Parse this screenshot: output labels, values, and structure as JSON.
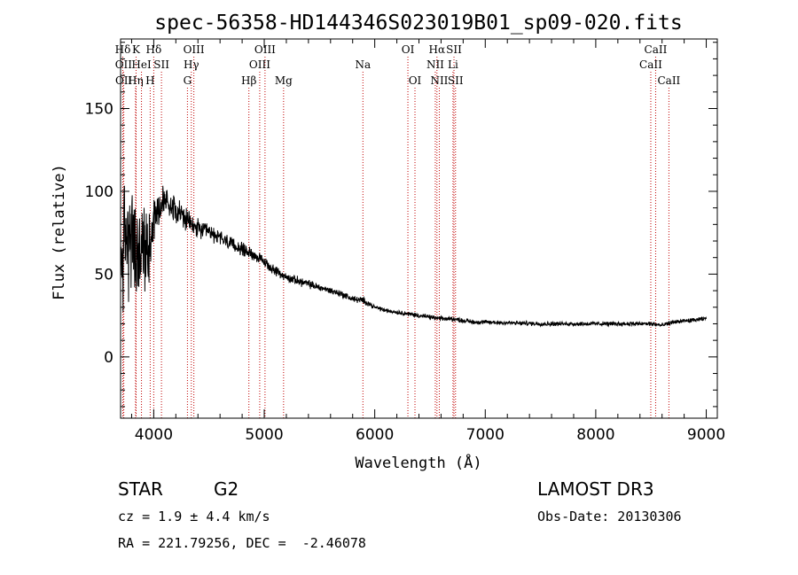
{
  "chart_data": {
    "type": "line",
    "title": "spec-56358-HD144346S023019B01_sp09-020.fits",
    "xlabel": "Wavelength (Å)",
    "ylabel": "Flux (relative)",
    "xlim": [
      3700,
      9100
    ],
    "ylim": [
      -37,
      192
    ],
    "xticks": [
      4000,
      5000,
      6000,
      7000,
      8000,
      9000
    ],
    "xtick_labels": [
      "4000",
      "5000",
      "6000",
      "7000",
      "8000",
      "9000"
    ],
    "yticks": [
      0,
      50,
      100,
      150
    ],
    "ytick_labels": [
      "0",
      "50",
      "100",
      "150"
    ],
    "line_markers": [
      {
        "label": "Hδ",
        "row": 0,
        "x": 3720
      },
      {
        "label": "OII",
        "row": 1,
        "x": 3727
      },
      {
        "label": "OII",
        "row": 2,
        "x": 3729
      },
      {
        "label": "K",
        "row": 0,
        "x": 3840
      },
      {
        "label": "HeI",
        "row": 1,
        "x": 3889
      },
      {
        "label": "Hη",
        "row": 2,
        "x": 3835
      },
      {
        "label": "Hδ",
        "row": 0,
        "x": 4000
      },
      {
        "label": "SII",
        "row": 1,
        "x": 4070
      },
      {
        "label": "H",
        "row": 2,
        "x": 3968
      },
      {
        "label": "OIII",
        "row": 0,
        "x": 4363
      },
      {
        "label": "Hγ",
        "row": 1,
        "x": 4340
      },
      {
        "label": "G",
        "row": 2,
        "x": 4305
      },
      {
        "label": "OIII",
        "row": 0,
        "x": 5007
      },
      {
        "label": "OIII",
        "row": 1,
        "x": 4959
      },
      {
        "label": "Hβ",
        "row": 2,
        "x": 4861
      },
      {
        "label": "Mg",
        "row": 2,
        "x": 5175
      },
      {
        "label": "Na",
        "row": 1,
        "x": 5893
      },
      {
        "label": "OI",
        "row": 0,
        "x": 6300
      },
      {
        "label": "OI",
        "row": 2,
        "x": 6364
      },
      {
        "label": "Hα",
        "row": 0,
        "x": 6563
      },
      {
        "label": "SII",
        "row": 0,
        "x": 6717
      },
      {
        "label": "NII",
        "row": 1,
        "x": 6548
      },
      {
        "label": "Li",
        "row": 1,
        "x": 6708
      },
      {
        "label": "NII",
        "row": 2,
        "x": 6584
      },
      {
        "label": "SII",
        "row": 2,
        "x": 6731
      },
      {
        "label": "CaII",
        "row": 0,
        "x": 8542
      },
      {
        "label": "CaII",
        "row": 1,
        "x": 8498
      },
      {
        "label": "CaII",
        "row": 2,
        "x": 8662
      }
    ],
    "series": [
      {
        "name": "flux",
        "x": [
          3700,
          3750,
          3800,
          3850,
          3900,
          3950,
          4000,
          4050,
          4100,
          4150,
          4200,
          4300,
          4400,
          4500,
          4600,
          4700,
          4800,
          4900,
          5000,
          5100,
          5200,
          5300,
          5400,
          5500,
          5600,
          5700,
          5800,
          5900,
          6000,
          6100,
          6200,
          6300,
          6400,
          6500,
          6600,
          6700,
          6800,
          6900,
          7000,
          7500,
          8000,
          8500,
          8600,
          8700,
          9000
        ],
        "values": [
          55,
          75,
          70,
          60,
          65,
          65,
          85,
          90,
          95,
          92,
          90,
          82,
          77,
          75,
          72,
          68,
          65,
          62,
          57,
          52,
          48,
          46,
          44,
          42,
          40,
          38,
          35,
          34,
          30,
          28,
          27,
          26,
          25,
          24,
          23,
          23,
          22,
          21,
          21,
          20,
          20,
          20,
          19,
          21,
          23
        ],
        "noise": [
          55,
          55,
          50,
          45,
          40,
          35,
          20,
          18,
          16,
          13,
          12,
          10,
          9,
          8,
          7,
          6,
          6,
          5,
          5,
          4,
          4,
          4,
          4,
          3,
          3,
          3,
          3,
          3,
          2,
          2,
          2,
          2,
          2,
          2,
          2,
          2,
          2,
          2,
          2,
          2,
          2,
          2,
          2,
          2,
          2
        ]
      }
    ]
  },
  "footer": {
    "object_class": "STAR",
    "subclass": "G2",
    "survey": "LAMOST DR3",
    "redshift": "cz = 1.9 ± 4.4 km/s",
    "obs_date": "Obs-Date: 20130306",
    "coords": "RA = 221.79256, DEC =  -2.46078"
  }
}
